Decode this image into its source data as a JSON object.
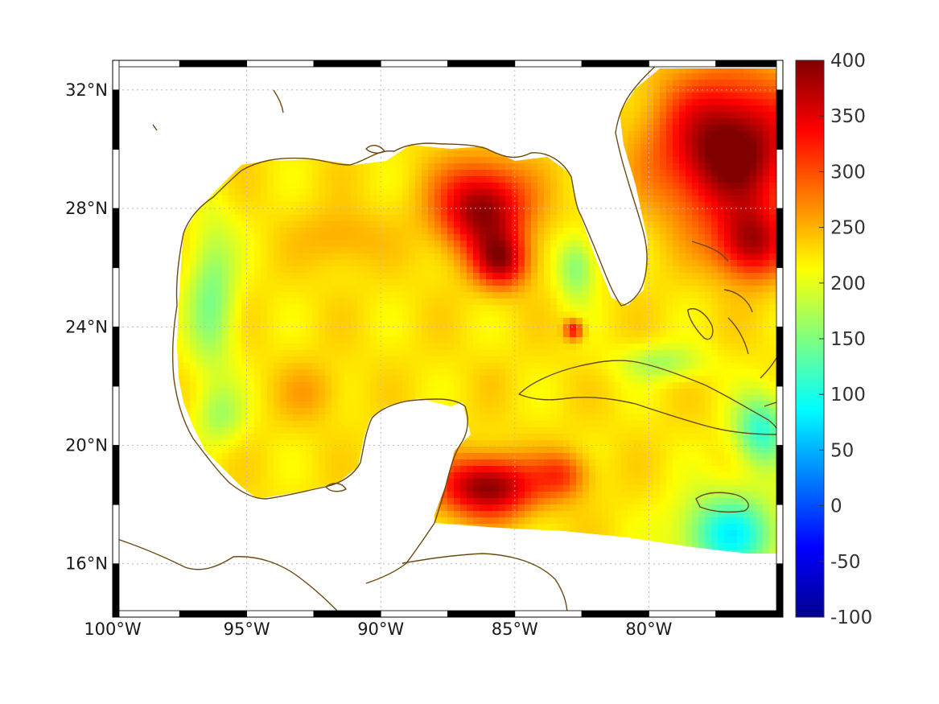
{
  "map": {
    "projection": "mercator-like",
    "lon_range": [
      -100,
      -75
    ],
    "lat_range": [
      14.2,
      33.0
    ],
    "grid": true,
    "frame_style": "black-white alternating border",
    "x_ticks": [
      {
        "lon": -100,
        "label": "100°W"
      },
      {
        "lon": -95,
        "label": "95°W"
      },
      {
        "lon": -90,
        "label": "90°W"
      },
      {
        "lon": -85,
        "label": "85°W"
      },
      {
        "lon": -80,
        "label": "80°W"
      }
    ],
    "y_ticks": [
      {
        "lat": 32,
        "label": "32°N"
      },
      {
        "lat": 28,
        "label": "28°N"
      },
      {
        "lat": 24,
        "label": "24°N"
      },
      {
        "lat": 20,
        "label": "20°N"
      },
      {
        "lat": 16,
        "label": "16°N"
      }
    ],
    "coast_color": "#6b4a12"
  },
  "colorbar": {
    "colormap": "jet",
    "min": -100,
    "max": 400,
    "ticks": [
      "400",
      "350",
      "300",
      "250",
      "200",
      "150",
      "100",
      "50",
      "0",
      "-50",
      "-100"
    ],
    "stops": [
      "#00008f",
      "#0000ff",
      "#00ffff",
      "#ffff00",
      "#ff0000",
      "#800000"
    ]
  },
  "field": {
    "background_value": 225,
    "features": [
      {
        "name": "loop-current-east-gulf",
        "lon": -86.2,
        "lat": 28.0,
        "value": 395,
        "sx": 1.7,
        "sy": 1.5
      },
      {
        "name": "east-gulf-south-lobe",
        "lon": -85.5,
        "lat": 26.2,
        "value": 355,
        "sx": 1.0,
        "sy": 0.9
      },
      {
        "name": "gulf-stream-atlantic",
        "lon": -77.0,
        "lat": 30.0,
        "value": 420,
        "sx": 2.6,
        "sy": 2.4
      },
      {
        "name": "atlantic-bahamas",
        "lon": -76.2,
        "lat": 26.8,
        "value": 360,
        "sx": 1.3,
        "sy": 1.2
      },
      {
        "name": "yucatan-west-caribbean",
        "lon": -86.0,
        "lat": 18.6,
        "value": 400,
        "sx": 1.8,
        "sy": 1.0
      },
      {
        "name": "cayman-eddy",
        "lon": -83.2,
        "lat": 19.0,
        "value": 300,
        "sx": 1.0,
        "sy": 0.8
      },
      {
        "name": "west-gulf-shelf",
        "lon": -96.3,
        "lat": 25.0,
        "value": 150,
        "sx": 0.9,
        "sy": 2.6
      },
      {
        "name": "mexico-west-shelf",
        "lon": -96.0,
        "lat": 21.0,
        "value": 175,
        "sx": 0.9,
        "sy": 1.0
      },
      {
        "name": "central-gulf-warm",
        "lon": -91.5,
        "lat": 27.0,
        "value": 260,
        "sx": 1.4,
        "sy": 1.0
      },
      {
        "name": "southwest-gulf-warm",
        "lon": -92.6,
        "lat": 21.8,
        "value": 255,
        "sx": 1.2,
        "sy": 1.0
      },
      {
        "name": "florida-shelf",
        "lon": -82.7,
        "lat": 26.0,
        "value": 150,
        "sx": 0.7,
        "sy": 1.1
      },
      {
        "name": "south-caribbean-cool",
        "lon": -77.0,
        "lat": 17.0,
        "value": 90,
        "sx": 1.8,
        "sy": 1.4
      },
      {
        "name": "windward-passage",
        "lon": -75.8,
        "lat": 20.5,
        "value": 110,
        "sx": 1.0,
        "sy": 1.2
      },
      {
        "name": "cuba-north-channel",
        "lon": -79.5,
        "lat": 22.8,
        "value": 170,
        "sx": 1.6,
        "sy": 0.6
      },
      {
        "name": "small-eddy-24n",
        "lon": -82.8,
        "lat": 23.9,
        "value": 340,
        "sx": 0.35,
        "sy": 0.35
      },
      {
        "name": "yucatan-channel",
        "lon": -85.8,
        "lat": 22.2,
        "value": 230,
        "sx": 0.7,
        "sy": 0.6
      }
    ]
  }
}
